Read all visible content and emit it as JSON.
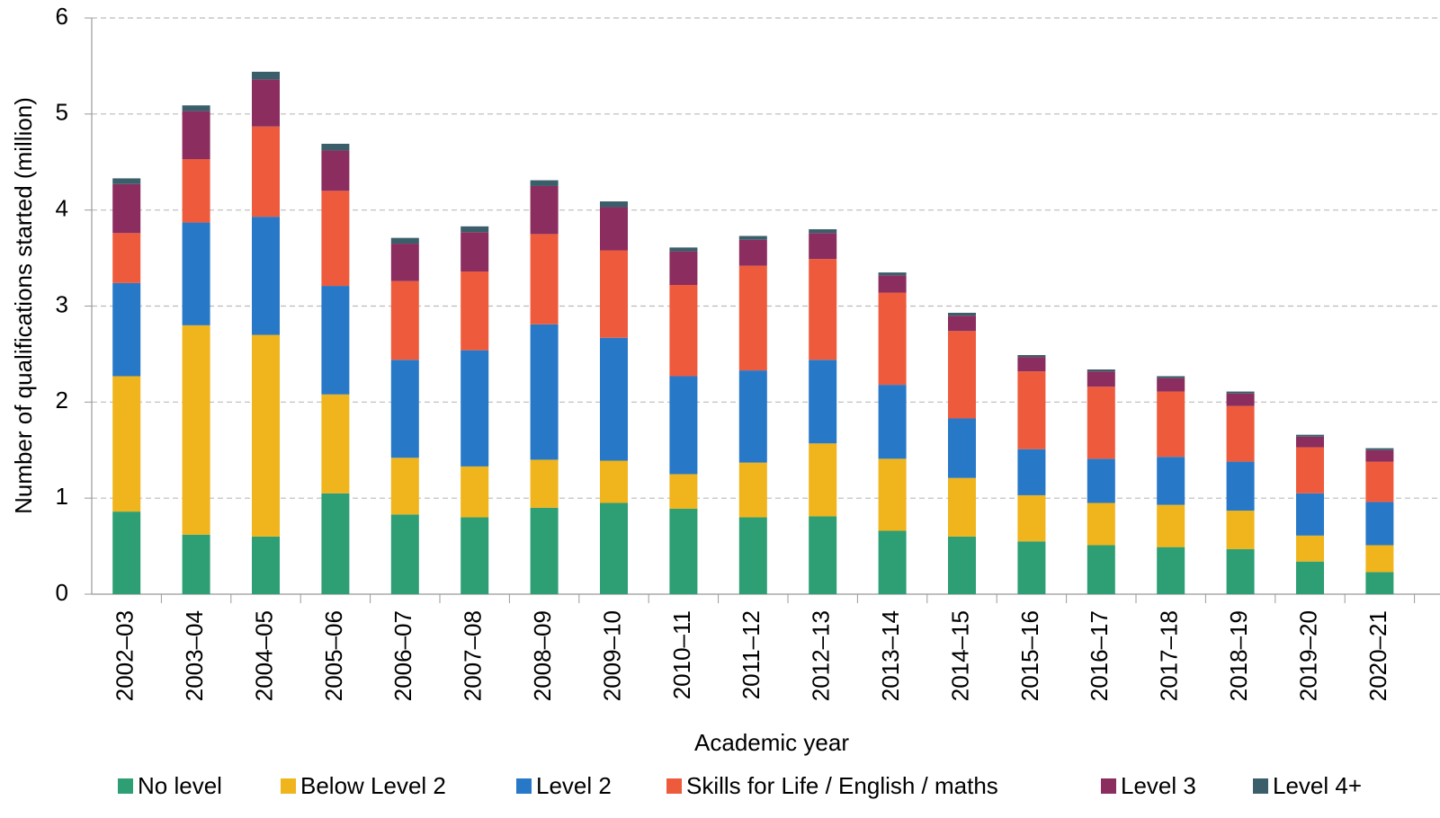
{
  "chart_data": {
    "type": "stacked_bar",
    "y_label": "Number of qualifications started (million)",
    "x_label": "Academic year",
    "categories": [
      "2002–03",
      "2003–04",
      "2004–05",
      "2005–06",
      "2006–07",
      "2007–08",
      "2008–09",
      "2009–10",
      "2010–11",
      "2011–12",
      "2012–13",
      "2013–14",
      "2014–15",
      "2015–16",
      "2016–17",
      "2017–18",
      "2018–19",
      "2019–20",
      "2020–21"
    ],
    "series": [
      {
        "name": "No level",
        "color": "#2e9e74",
        "values": [
          0.86,
          0.62,
          0.6,
          1.05,
          0.83,
          0.8,
          0.9,
          0.95,
          0.89,
          0.8,
          0.81,
          0.66,
          0.6,
          0.55,
          0.51,
          0.49,
          0.47,
          0.34,
          0.23
        ]
      },
      {
        "name": "Below Level 2",
        "color": "#f0b41c",
        "values": [
          1.41,
          2.18,
          2.1,
          1.03,
          0.59,
          0.53,
          0.5,
          0.44,
          0.36,
          0.57,
          0.76,
          0.75,
          0.61,
          0.48,
          0.44,
          0.44,
          0.4,
          0.27,
          0.28
        ]
      },
      {
        "name": "Level 2",
        "color": "#2878c8",
        "values": [
          0.97,
          1.07,
          1.23,
          1.13,
          1.02,
          1.21,
          1.41,
          1.28,
          1.02,
          0.96,
          0.87,
          0.77,
          0.62,
          0.48,
          0.46,
          0.5,
          0.51,
          0.44,
          0.45
        ]
      },
      {
        "name": "Skills for Life / English / maths",
        "color": "#ee5b3c",
        "values": [
          0.52,
          0.66,
          0.94,
          0.99,
          0.82,
          0.82,
          0.94,
          0.91,
          0.95,
          1.09,
          1.05,
          0.96,
          0.91,
          0.81,
          0.75,
          0.68,
          0.58,
          0.48,
          0.42
        ]
      },
      {
        "name": "Level 3",
        "color": "#8b2d5e",
        "values": [
          0.51,
          0.5,
          0.49,
          0.42,
          0.39,
          0.41,
          0.5,
          0.45,
          0.35,
          0.27,
          0.27,
          0.18,
          0.16,
          0.15,
          0.16,
          0.14,
          0.13,
          0.11,
          0.12
        ]
      },
      {
        "name": "Level 4+",
        "color": "#3a5f6a",
        "values": [
          0.06,
          0.06,
          0.08,
          0.07,
          0.06,
          0.06,
          0.06,
          0.06,
          0.04,
          0.04,
          0.04,
          0.03,
          0.03,
          0.02,
          0.02,
          0.02,
          0.02,
          0.02,
          0.02
        ]
      }
    ],
    "ylim": [
      0,
      6
    ],
    "yticks": [
      0,
      1,
      2,
      3,
      4,
      5,
      6
    ],
    "grid": true,
    "legend": "bottom"
  }
}
